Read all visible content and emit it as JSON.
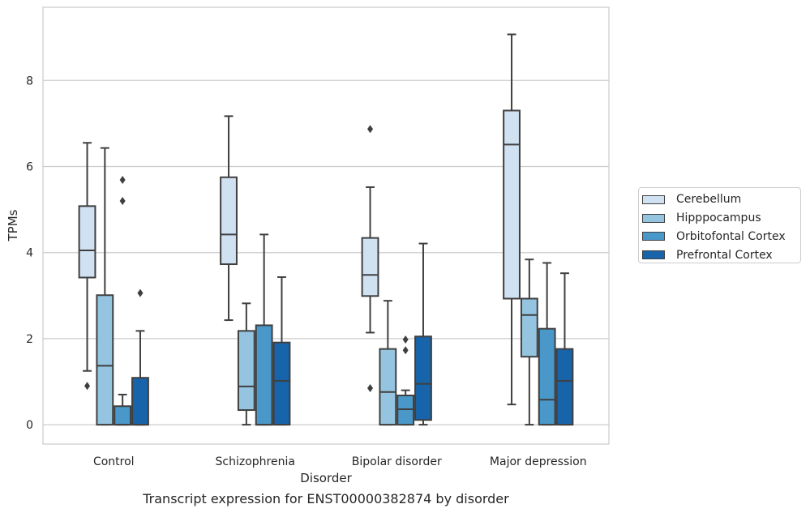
{
  "chart_data": {
    "type": "box",
    "xlabel": "Disorder",
    "ylabel": "TPMs",
    "caption": "Transcript expression for ENST00000382874 by disorder",
    "ylim": [
      -0.45,
      9.7
    ],
    "yticks": [
      0,
      2,
      4,
      6,
      8
    ],
    "grid": "horizontal",
    "legend_position": "right",
    "categories": [
      "Control",
      "Schizophrenia",
      "Bipolar disorder",
      "Major depression"
    ],
    "series": [
      {
        "name": "Cerebellum",
        "color": "#d0e1f2",
        "boxes": [
          {
            "whislo": 1.25,
            "q1": 3.42,
            "med": 4.05,
            "q3": 5.08,
            "whishi": 6.55,
            "fliers": [
              0.9
            ]
          },
          {
            "whislo": 2.43,
            "q1": 3.73,
            "med": 4.42,
            "q3": 5.75,
            "whishi": 7.17,
            "fliers": []
          },
          {
            "whislo": 2.14,
            "q1": 2.99,
            "med": 3.48,
            "q3": 4.34,
            "whishi": 5.52,
            "fliers": [
              0.85,
              6.87
            ]
          },
          {
            "whislo": 0.47,
            "q1": 2.93,
            "med": 6.51,
            "q3": 7.3,
            "whishi": 9.07,
            "fliers": []
          }
        ]
      },
      {
        "name": "Hipppocampus",
        "color": "#94c4df",
        "boxes": [
          {
            "whislo": 0.0,
            "q1": 0.0,
            "med": 1.37,
            "q3": 3.01,
            "whishi": 6.43,
            "fliers": []
          },
          {
            "whislo": 0.0,
            "q1": 0.34,
            "med": 0.89,
            "q3": 2.18,
            "whishi": 2.82,
            "fliers": []
          },
          {
            "whislo": 0.0,
            "q1": 0.0,
            "med": 0.76,
            "q3": 1.76,
            "whishi": 2.88,
            "fliers": []
          },
          {
            "whislo": 0.0,
            "q1": 1.58,
            "med": 2.55,
            "q3": 2.93,
            "whishi": 3.84,
            "fliers": []
          }
        ]
      },
      {
        "name": "Orbitofontal Cortex",
        "color": "#4a98c9",
        "boxes": [
          {
            "whislo": 0.0,
            "q1": 0.0,
            "med": 0.0,
            "q3": 0.43,
            "whishi": 0.7,
            "fliers": [
              5.2,
              5.69
            ]
          },
          {
            "whislo": 0.0,
            "q1": 0.0,
            "med": 0.0,
            "q3": 2.31,
            "whishi": 4.42,
            "fliers": []
          },
          {
            "whislo": 0.0,
            "q1": 0.0,
            "med": 0.36,
            "q3": 0.68,
            "whishi": 0.8,
            "fliers": [
              1.73,
              1.98
            ]
          },
          {
            "whislo": 0.0,
            "q1": 0.0,
            "med": 0.58,
            "q3": 2.23,
            "whishi": 3.76,
            "fliers": []
          }
        ]
      },
      {
        "name": "Prefrontal Cortex",
        "color": "#1764ab",
        "boxes": [
          {
            "whislo": 0.0,
            "q1": 0.0,
            "med": 0.0,
            "q3": 1.09,
            "whishi": 2.18,
            "fliers": [
              3.06
            ]
          },
          {
            "whislo": 0.0,
            "q1": 0.0,
            "med": 1.02,
            "q3": 1.91,
            "whishi": 3.43,
            "fliers": []
          },
          {
            "whislo": 0.0,
            "q1": 0.11,
            "med": 0.95,
            "q3": 2.05,
            "whishi": 4.21,
            "fliers": []
          },
          {
            "whislo": 0.0,
            "q1": 0.0,
            "med": 1.02,
            "q3": 1.76,
            "whishi": 3.52,
            "fliers": []
          }
        ]
      }
    ]
  }
}
